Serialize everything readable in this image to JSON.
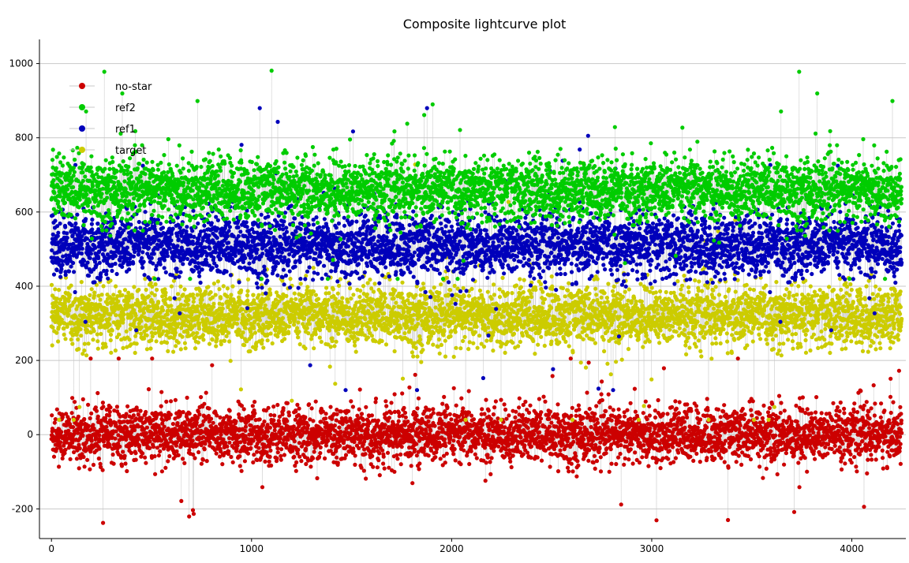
{
  "chart_data": {
    "type": "scatter",
    "title": "Composite lightcurve plot",
    "xlabel": "",
    "ylabel": "",
    "xlim": [
      -60,
      4270
    ],
    "ylim": [
      -280,
      1065
    ],
    "xticks": [
      0,
      1000,
      2000,
      3000,
      4000
    ],
    "yticks": [
      -200,
      0,
      200,
      400,
      600,
      800,
      1000
    ],
    "grid": "horizontal",
    "legend_position": "top-left",
    "connector_color": "#c8c8c8",
    "n_points_per_series": 4250,
    "series": [
      {
        "name": "no-star",
        "color": "#cc0000",
        "mean": 0,
        "spread": 68,
        "min": -238,
        "max": 205
      },
      {
        "name": "ref2",
        "color": "#00cc00",
        "mean": 660,
        "spread": 75,
        "min": 420,
        "max": 1012
      },
      {
        "name": "ref1",
        "color": "#0000bb",
        "mean": 510,
        "spread": 78,
        "min": 120,
        "max": 880
      },
      {
        "name": "target",
        "color": "#cccc00",
        "mean": 320,
        "spread": 75,
        "min": 40,
        "max": 800
      }
    ]
  }
}
